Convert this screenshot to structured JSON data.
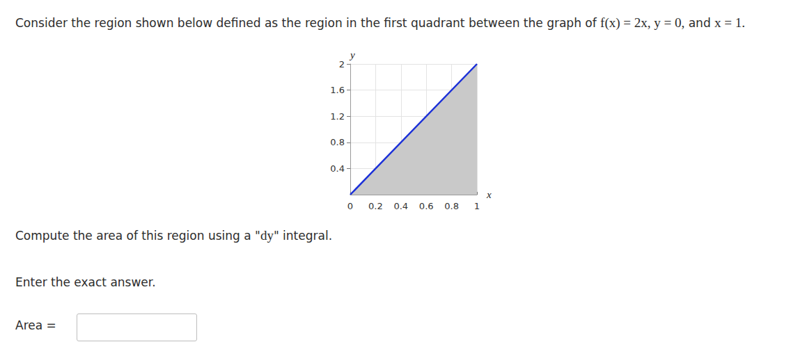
{
  "page": {
    "intro": [
      {
        "text": "Consider the region shown below defined as the region in the first quadrant between the graph of ",
        "math": false
      },
      {
        "text": "f(x) = 2x,  y = 0,",
        "math": true
      },
      {
        "text": " and ",
        "math": false
      },
      {
        "text": "x = 1.",
        "math": true
      }
    ],
    "prompt": [
      {
        "text": "Compute the area of this region using a \"",
        "math": false
      },
      {
        "text": "dy",
        "math": true
      },
      {
        "text": "\" integral.",
        "math": false
      }
    ],
    "instruction": "Enter the exact answer.",
    "answer_label": "Area ="
  },
  "chart_data": {
    "type": "area",
    "x": [
      0,
      1
    ],
    "values": [
      0,
      2
    ],
    "color": "#1a2fd8",
    "xlim": [
      0,
      1
    ],
    "ylim": [
      0,
      2
    ],
    "xticks": [
      0,
      0.2,
      0.4,
      0.6,
      0.8,
      1
    ],
    "yticks": [
      0.4,
      0.8,
      1.2,
      1.6,
      2
    ],
    "x_label": "x",
    "y_label": "y",
    "grid": true
  }
}
